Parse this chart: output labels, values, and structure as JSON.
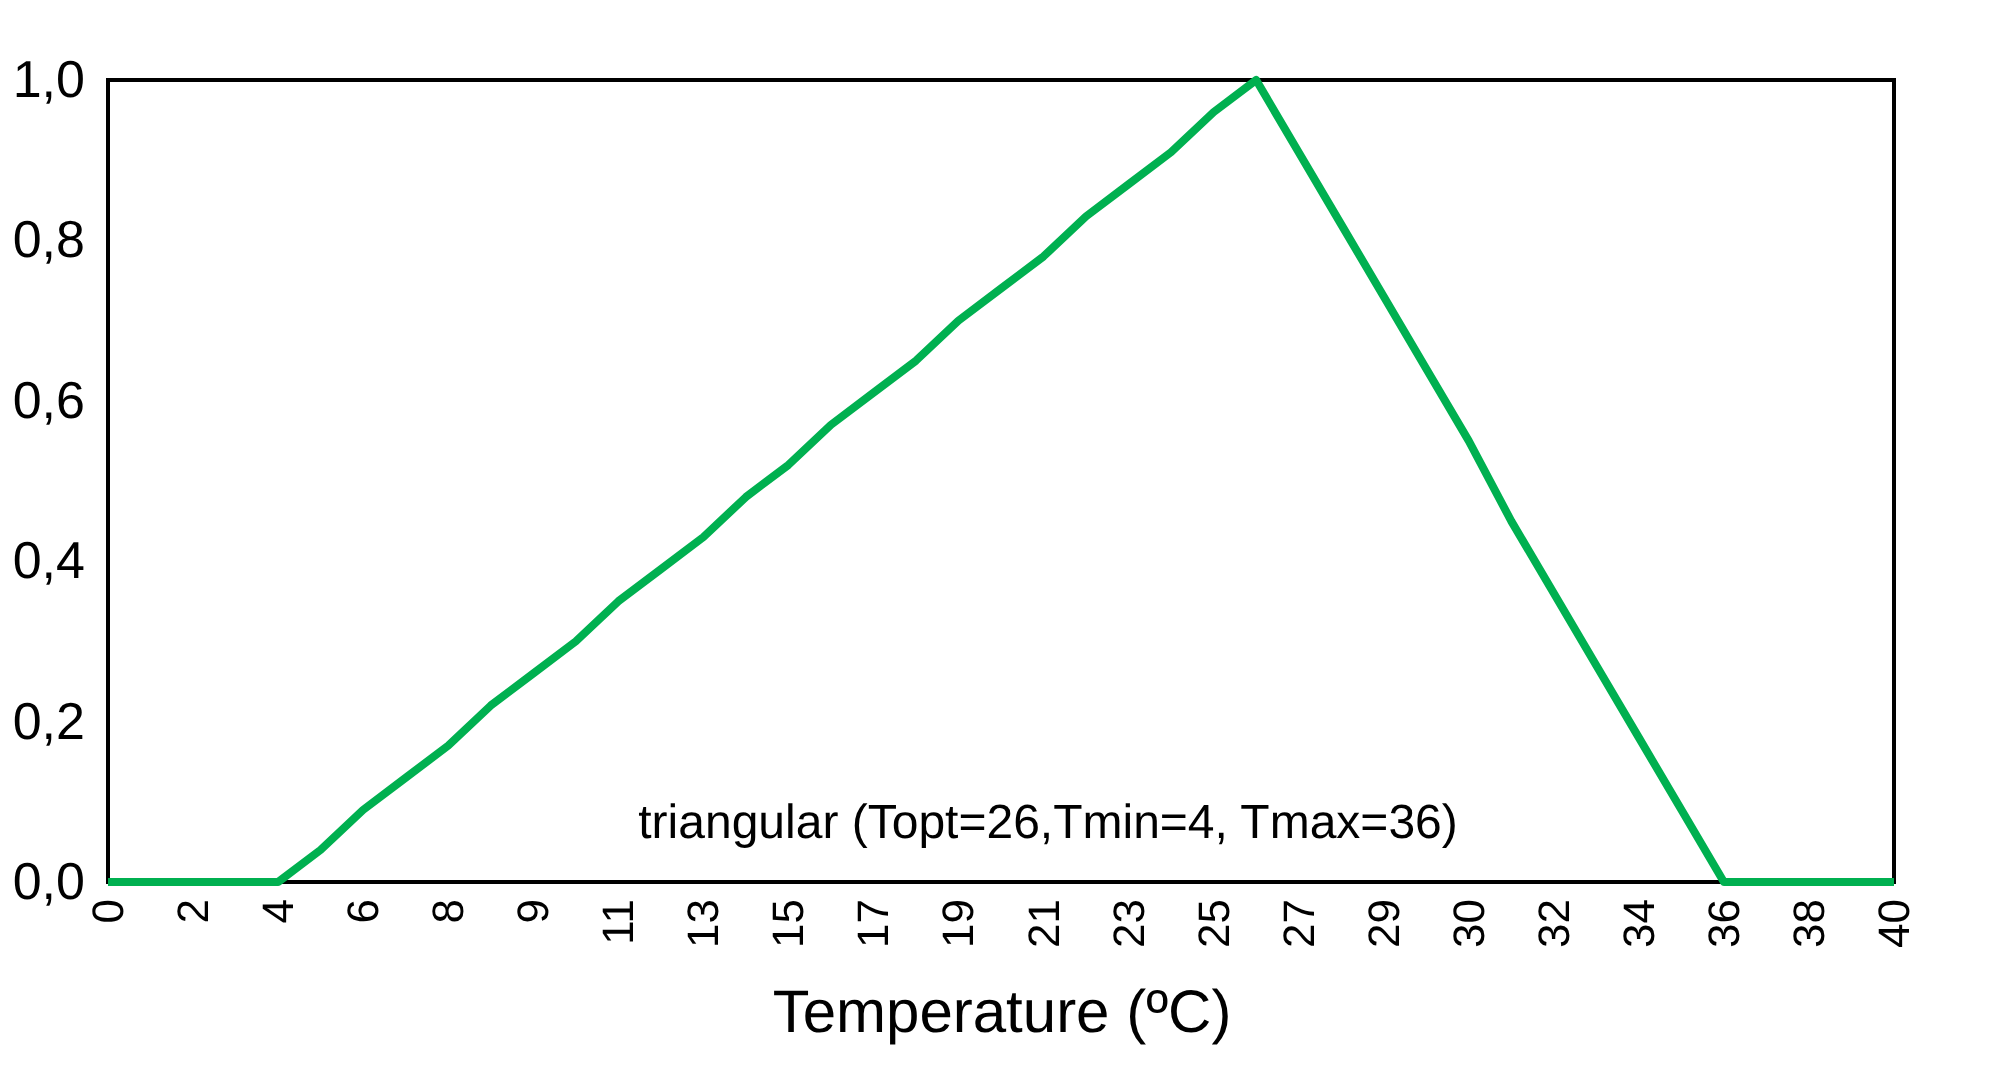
{
  "chart_data": {
    "type": "line",
    "xlabel": "Temperature (ºC)",
    "categories": [
      "0",
      null,
      "2",
      null,
      "4",
      null,
      "6",
      null,
      "8",
      null,
      "9",
      null,
      "11",
      null,
      "13",
      null,
      "15",
      null,
      "17",
      null,
      "19",
      null,
      "21",
      null,
      "23",
      null,
      "25",
      null,
      "27",
      null,
      "29",
      null,
      "30",
      null,
      "32",
      null,
      "34",
      null,
      "36",
      null,
      "38",
      null,
      "40"
    ],
    "series": [
      {
        "color": "#00b050",
        "values": [
          0,
          0,
          0,
          0,
          0,
          0.04,
          0.09,
          0.13,
          0.17,
          0.22,
          0.26,
          0.3,
          0.35,
          0.39,
          0.43,
          0.48,
          0.52,
          0.57,
          0.61,
          0.65,
          0.7,
          0.74,
          0.78,
          0.83,
          0.87,
          0.91,
          0.96,
          1.0,
          0.91,
          0.82,
          0.73,
          0.64,
          0.55,
          0.45,
          0.36,
          0.27,
          0.18,
          0.09,
          0,
          0,
          0,
          0,
          0
        ]
      }
    ],
    "ylim": [
      0,
      1
    ],
    "yticks": [
      {
        "value": 0,
        "label": "0,0"
      },
      {
        "value": 0.2,
        "label": "0,2"
      },
      {
        "value": 0.4,
        "label": "0,4"
      },
      {
        "value": 0.6,
        "label": "0,6"
      },
      {
        "value": 0.8,
        "label": "0,8"
      },
      {
        "value": 1,
        "label": "1,0"
      }
    ],
    "annotations": [
      "triangular (Topt=26,Tmin=4, Tmax=36)"
    ],
    "grid": false,
    "marker": "none",
    "line_style": "solid"
  }
}
